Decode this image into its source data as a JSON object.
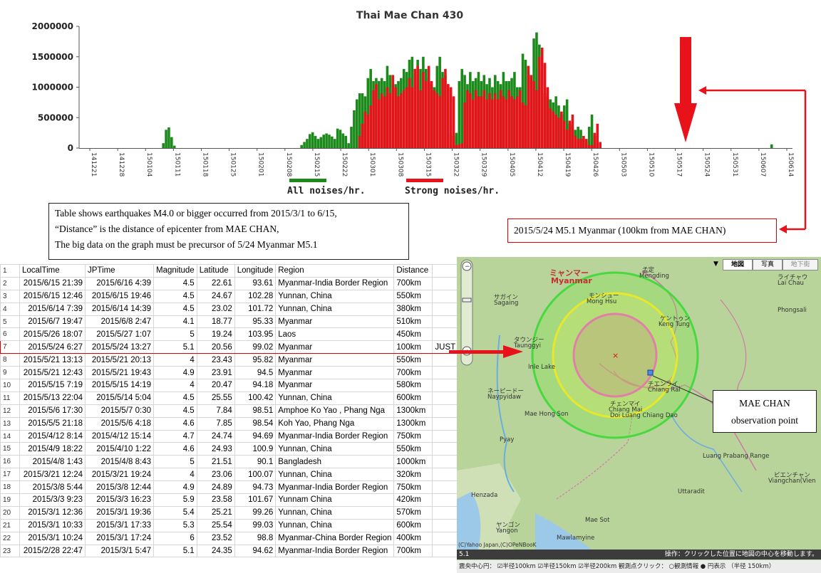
{
  "chart_data": {
    "type": "bar",
    "title": "Thai Mae Chan 430",
    "ylim": [
      0,
      2000000
    ],
    "yticks": [
      "2000000",
      "1500000",
      "1000000",
      "500000",
      "0"
    ],
    "ytick_values": [
      2000000,
      1500000,
      1000000,
      500000,
      0
    ],
    "xticks": [
      "141221",
      "141228",
      "150104",
      "150111",
      "150118",
      "150125",
      "150201",
      "150208",
      "150215",
      "150222",
      "150301",
      "150308",
      "150315",
      "150322",
      "150329",
      "150405",
      "150412",
      "150419",
      "150426",
      "150503",
      "150510",
      "150517",
      "150524",
      "150531",
      "150607",
      "150614"
    ],
    "series": [
      {
        "name": "All noises/hr.",
        "color": "#1b8a1b"
      },
      {
        "name": "Strong noises/hr.",
        "color": "#e8121a"
      }
    ],
    "legend_position": "bottom",
    "grid": false,
    "approx_daily_all": [
      0,
      0,
      0,
      0,
      0,
      0,
      0,
      0,
      0,
      0,
      0,
      0,
      0,
      0,
      0,
      0,
      0,
      0,
      0,
      0,
      0,
      0,
      0,
      0,
      0,
      0,
      0,
      0,
      0,
      0,
      80000,
      300000,
      340000,
      180000,
      40000,
      0,
      0,
      0,
      0,
      0,
      0,
      0,
      0,
      0,
      0,
      0,
      0,
      0,
      0,
      0,
      0,
      0,
      0,
      0,
      0,
      0,
      0,
      0,
      0,
      0,
      0,
      0,
      0,
      0,
      0,
      0,
      0,
      0,
      0,
      0,
      0,
      0,
      0,
      0,
      0,
      0,
      0,
      0,
      0,
      0,
      50000,
      100000,
      150000,
      230000,
      260000,
      200000,
      150000,
      180000,
      220000,
      240000,
      220000,
      190000,
      150000,
      320000,
      300000,
      240000,
      200000,
      80000,
      350000,
      620000,
      800000,
      900000,
      900000,
      850000,
      1150000,
      1300000,
      1100000,
      1150000,
      1100000,
      1150000,
      1100000,
      1350000,
      1200000,
      1050000,
      1050000,
      1100000,
      1150000,
      1300000,
      1250000,
      1450000,
      1500000,
      1200000,
      1450000,
      1300000,
      1500000,
      1300000,
      1150000,
      1050000,
      1000000,
      1350000,
      1500000,
      1250000,
      1200000,
      1050000,
      250000,
      200000,
      250000,
      1100000,
      1300000,
      1200000,
      1050000,
      1250000,
      1100000,
      1150000,
      1250000,
      1100000,
      1200000,
      1050000,
      1150000,
      1000000,
      1200000,
      1100000,
      1050000,
      1250000,
      1100000,
      1100000,
      1150000,
      1250000,
      1000000,
      1000000,
      1550000,
      1450000,
      1300000,
      1150000,
      1800000,
      1900000,
      1700000,
      1250000,
      900000,
      850000,
      800000,
      750000,
      850000,
      700000,
      550000,
      700000,
      800000,
      400000,
      350000,
      300000,
      350000,
      300000,
      150000,
      100000,
      350000,
      550000,
      200000,
      0,
      0,
      0,
      0,
      0,
      0,
      0,
      0,
      0,
      0,
      0,
      0,
      0,
      0,
      0,
      0,
      0,
      0,
      0,
      0,
      0,
      0,
      0,
      0,
      0,
      0,
      0,
      0,
      0,
      0,
      0,
      0,
      0,
      0,
      0,
      0,
      0,
      0,
      0,
      0,
      0,
      0,
      0,
      0,
      0,
      0,
      0,
      0,
      0,
      0,
      0,
      0,
      0,
      0,
      0,
      0,
      0,
      0,
      0,
      0,
      0,
      0,
      0,
      60000,
      0,
      0,
      0,
      0,
      0,
      0,
      0
    ],
    "approx_daily_strong": [
      0,
      0,
      0,
      0,
      0,
      0,
      0,
      0,
      0,
      0,
      0,
      0,
      0,
      0,
      0,
      0,
      0,
      0,
      0,
      0,
      0,
      0,
      0,
      0,
      0,
      0,
      0,
      0,
      0,
      0,
      0,
      0,
      0,
      0,
      0,
      0,
      0,
      0,
      0,
      0,
      0,
      0,
      0,
      0,
      0,
      0,
      0,
      0,
      0,
      0,
      0,
      0,
      0,
      0,
      0,
      0,
      0,
      0,
      0,
      0,
      0,
      0,
      0,
      0,
      0,
      0,
      0,
      0,
      0,
      0,
      0,
      0,
      0,
      0,
      0,
      0,
      0,
      0,
      0,
      0,
      0,
      0,
      0,
      0,
      0,
      0,
      0,
      0,
      0,
      0,
      0,
      0,
      0,
      0,
      0,
      0,
      0,
      0,
      0,
      0,
      0,
      200000,
      400000,
      600000,
      550000,
      700000,
      950000,
      1050000,
      800000,
      900000,
      850000,
      1000000,
      900000,
      1200000,
      1000000,
      850000,
      900000,
      950000,
      1000000,
      1150000,
      1000000,
      1300000,
      1350000,
      950000,
      1250000,
      1100000,
      1350000,
      1100000,
      950000,
      900000,
      850000,
      1150000,
      1300000,
      1050000,
      1000000,
      850000,
      50000,
      60000,
      80000,
      750000,
      950000,
      900000,
      800000,
      950000,
      850000,
      850000,
      950000,
      800000,
      900000,
      800000,
      900000,
      800000,
      950000,
      850000,
      800000,
      950000,
      850000,
      800000,
      850000,
      950000,
      750000,
      700000,
      1350000,
      1200000,
      1100000,
      950000,
      1500000,
      1650000,
      1400000,
      1000000,
      650000,
      600000,
      550000,
      500000,
      600000,
      450000,
      300000,
      450000,
      550000,
      200000,
      150000,
      150000,
      200000,
      150000,
      50000,
      50000,
      250000,
      400000,
      100000,
      0,
      0,
      0,
      0,
      0,
      0,
      0,
      0,
      0,
      0,
      0,
      0,
      0,
      0,
      0,
      0,
      0,
      0,
      0,
      0,
      0,
      0,
      0,
      0,
      0,
      0,
      0,
      0,
      0,
      0,
      0,
      0,
      0,
      0,
      0,
      0,
      0,
      0,
      0,
      0,
      0,
      0,
      0,
      0,
      0,
      0,
      0,
      0,
      0,
      0,
      0,
      0,
      0,
      0,
      0,
      0,
      0,
      0,
      0,
      0,
      0,
      0,
      0,
      0,
      0,
      0,
      0,
      0,
      0,
      0,
      0,
      0
    ]
  },
  "note": {
    "line1": "Table shows earthquakes M4.0 or bigger occurred from 2015/3/1 to 6/15,",
    "line2": "“Distance” is the distance of epicenter from MAE CHAN,",
    "line3": "The big data on the graph must be precursor of 5/24 Myanmar M5.1"
  },
  "callout": {
    "text": "2015/5/24 M5.1 Myanmar (100km from MAE CHAN)"
  },
  "table": {
    "headers": [
      "LocalTime",
      "JPTime",
      "Magnitude",
      "Latitude",
      "Longitude",
      "Region",
      "Distance",
      ""
    ],
    "rows": [
      [
        "2015/6/15 21:39",
        "2015/6/16 4:39",
        "4.5",
        "22.61",
        "93.61",
        "Myanmar-India Border Region",
        "700km",
        ""
      ],
      [
        "2015/6/15 12:46",
        "2015/6/15 19:46",
        "4.5",
        "24.67",
        "102.28",
        "Yunnan, China",
        "550km",
        ""
      ],
      [
        "2015/6/14 7:39",
        "2015/6/14 14:39",
        "4.5",
        "23.02",
        "101.72",
        "Yunnan, China",
        "380km",
        ""
      ],
      [
        "2015/6/7 19:47",
        "2015/6/8 2:47",
        "4.1",
        "18.77",
        "95.33",
        "Myanmar",
        "510km",
        ""
      ],
      [
        "2015/5/26 18:07",
        "2015/5/27 1:07",
        "5",
        "19.24",
        "103.95",
        "Laos",
        "450km",
        ""
      ],
      [
        "2015/5/24 6:27",
        "2015/5/24 13:27",
        "5.1",
        "20.56",
        "99.02",
        "Myanmar",
        "100km",
        "JUST"
      ],
      [
        "2015/5/21 13:13",
        "2015/5/21 20:13",
        "4",
        "23.43",
        "95.82",
        "Myanmar",
        "550km",
        ""
      ],
      [
        "2015/5/21 12:43",
        "2015/5/21 19:43",
        "4.9",
        "23.91",
        "94.5",
        "Myanmar",
        "700km",
        ""
      ],
      [
        "2015/5/15 7:19",
        "2015/5/15 14:19",
        "4",
        "20.47",
        "94.18",
        "Myanmar",
        "580km",
        ""
      ],
      [
        "2015/5/13 22:04",
        "2015/5/14 5:04",
        "4.5",
        "25.55",
        "100.42",
        "Yunnan, China",
        "600km",
        ""
      ],
      [
        "2015/5/6 17:30",
        "2015/5/7 0:30",
        "4.5",
        "7.84",
        "98.51",
        "Amphoe Ko Yao , Phang Nga",
        "1300km",
        ""
      ],
      [
        "2015/5/5 21:18",
        "2015/5/6 4:18",
        "4.6",
        "7.85",
        "98.54",
        "Koh Yao, Phang Nga",
        "1300km",
        ""
      ],
      [
        "2015/4/12 8:14",
        "2015/4/12 15:14",
        "4.7",
        "24.74",
        "94.69",
        "Myanmar-India Border Region",
        "750km",
        ""
      ],
      [
        "2015/4/9 18:22",
        "2015/4/10 1:22",
        "4.6",
        "24.93",
        "100.9",
        "Yunnan, China",
        "550km",
        ""
      ],
      [
        "2015/4/8 1:43",
        "2015/4/8 8:43",
        "5",
        "21.51",
        "90.1",
        "Bangladesh",
        "1000km",
        ""
      ],
      [
        "2015/3/21 12:24",
        "2015/3/21 19:24",
        "4",
        "23.06",
        "100.07",
        "Yunnan, China",
        "320km",
        ""
      ],
      [
        "2015/3/8 5:44",
        "2015/3/8 12:44",
        "4.9",
        "24.89",
        "94.73",
        "Myanmar-India Border Region",
        "750km",
        ""
      ],
      [
        "2015/3/3 9:23",
        "2015/3/3 16:23",
        "5.9",
        "23.58",
        "101.67",
        "Yunnam China",
        "420km",
        ""
      ],
      [
        "2015/3/1 12:36",
        "2015/3/1 19:36",
        "5.4",
        "25.21",
        "99.26",
        "Yunnan, China",
        "570km",
        ""
      ],
      [
        "2015/3/1 10:33",
        "2015/3/1 17:33",
        "5.3",
        "25.54",
        "99.03",
        "Yunnan, China",
        "600km",
        ""
      ],
      [
        "2015/3/1 10:24",
        "2015/3/1 17:24",
        "6",
        "23.52",
        "98.8",
        "Myanmar-China Border Region",
        "400km",
        ""
      ],
      [
        "2015/2/28 22:47",
        "2015/3/1 5:47",
        "5.1",
        "24.35",
        "94.62",
        "Myanmar-India Border Region",
        "700km",
        ""
      ]
    ]
  },
  "map": {
    "buttons": [
      "地図",
      "写真",
      "地下街"
    ],
    "labels": [
      {
        "text": "ミャンマー",
        "cls": "country"
      },
      {
        "text": "Myanmar",
        "cls": "country"
      },
      {
        "text": "孟定",
        "cls": "p"
      },
      {
        "text": "Mengding",
        "cls": "p"
      },
      {
        "text": "ライチャウ",
        "cls": "p"
      },
      {
        "text": "Lai Chau",
        "cls": "p"
      },
      {
        "text": "サガイン",
        "cls": "p"
      },
      {
        "text": "Sagaing",
        "cls": "p"
      },
      {
        "text": "モンシュー",
        "cls": "p"
      },
      {
        "text": "Mong Hsu",
        "cls": "p"
      },
      {
        "text": "ケントゥン",
        "cls": "p"
      },
      {
        "text": "Keng Tung",
        "cls": "p"
      },
      {
        "text": "タウンジー",
        "cls": "p"
      },
      {
        "text": "Taunggyi",
        "cls": "p"
      },
      {
        "text": "チエンライ",
        "cls": "p"
      },
      {
        "text": "Chiang Rai",
        "cls": "p"
      },
      {
        "text": "ネーピードー",
        "cls": "p"
      },
      {
        "text": "Naypyidaw",
        "cls": "p"
      },
      {
        "text": "チェンマイ",
        "cls": "p"
      },
      {
        "text": "Chiang Mai",
        "cls": "p"
      },
      {
        "text": "ヤンゴン",
        "cls": "p"
      },
      {
        "text": "Yangon",
        "cls": "p"
      },
      {
        "text": "ビエンチャン",
        "cls": "p"
      },
      {
        "text": "Viangchan(Vien",
        "cls": "p"
      },
      {
        "text": "Phongsali",
        "cls": "p"
      },
      {
        "text": "Luang Prabang Range",
        "cls": "p"
      },
      {
        "text": "Mae Hong Son",
        "cls": "p"
      },
      {
        "text": "Doi Luang Chiang Dao",
        "cls": "p"
      },
      {
        "text": "Mae Sot",
        "cls": "p"
      },
      {
        "text": "Uttaradit",
        "cls": "p"
      },
      {
        "text": "Inle Lake",
        "cls": "p"
      },
      {
        "text": "Pyay",
        "cls": "p"
      },
      {
        "text": "Henzada",
        "cls": "p"
      },
      {
        "text": "Mawlamyine",
        "cls": "p"
      }
    ],
    "status_left": "5.1",
    "status_right": "操作：クリックした位置に地図の中心を移動します。",
    "ctrl": "震央中心円： ☑半径100km ☑半径150km ☑半径200km     観測点クリック： ○観測情報 ● 円表示 （半径 150km）",
    "copyright": "(C)Yahoo Japan,(C)OPeNBooK",
    "observation_box": {
      "line1": "MAE CHAN",
      "line2": "observation point"
    }
  }
}
